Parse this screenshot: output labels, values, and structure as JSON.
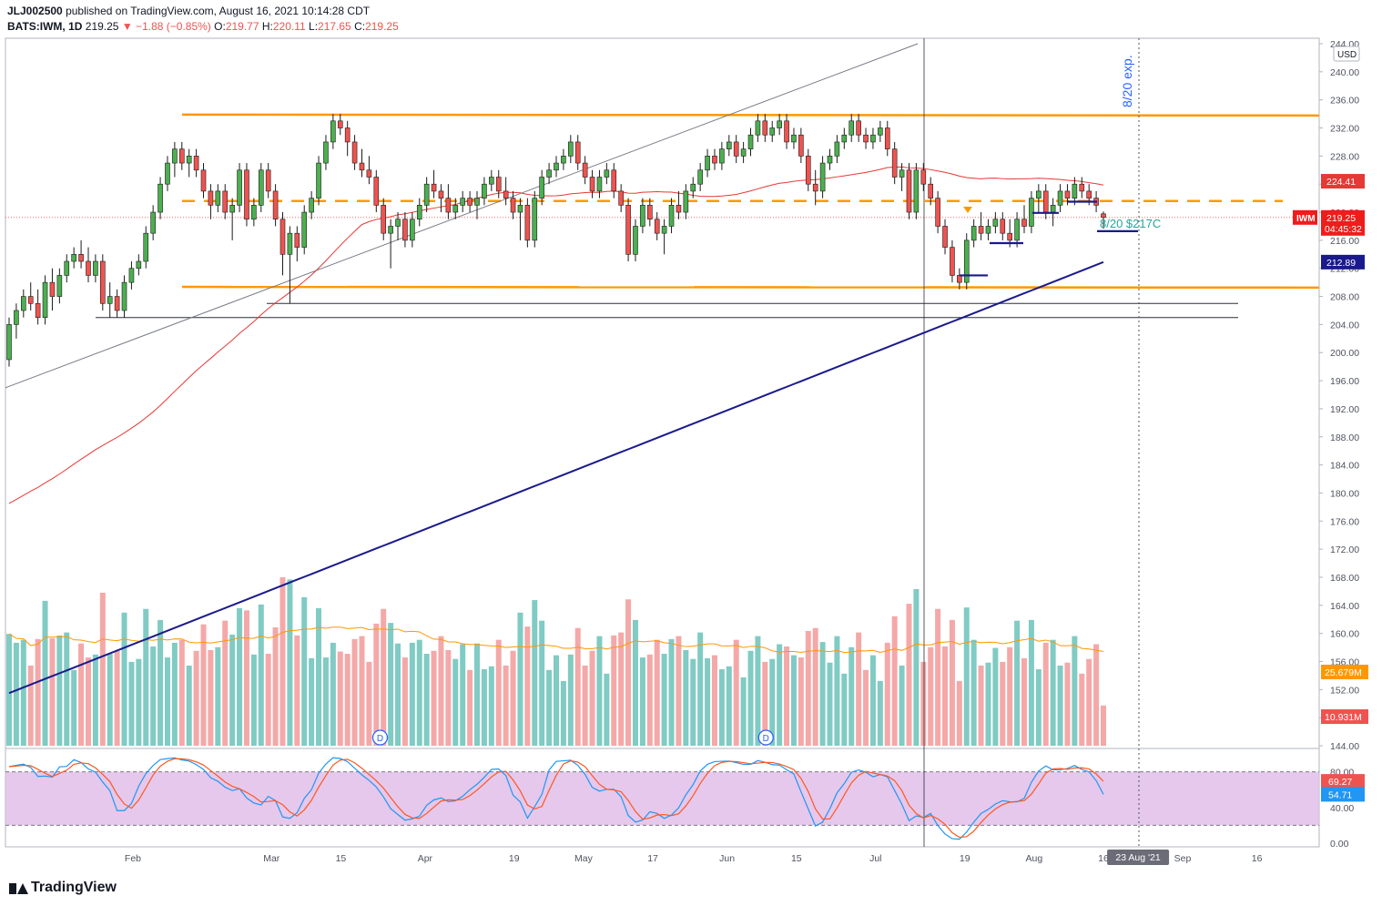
{
  "header": {
    "publisher": "JLJ002500",
    "published_text": "published on TradingView.com, August 16, 2021 10:14:28 CDT",
    "symbol": "BATS:IWM, 1D",
    "last": "219.25",
    "change": "−1.88 (−0.85%)",
    "o_label": "O:",
    "o": "219.77",
    "h_label": "H:",
    "h": "220.11",
    "l_label": "L:",
    "l": "217.65",
    "c_label": "C:",
    "c": "219.25"
  },
  "footer": {
    "brand": "TradingView"
  },
  "colors": {
    "up": "#26a69a",
    "down": "#ef5350",
    "sma_red": "#e53935",
    "sma_navy": "#1a1a8c",
    "orange": "#ff9800",
    "stoch_bg": "#e1bee7",
    "vol_up": "#80cbc4",
    "vol_down": "#f4a8a8"
  },
  "chart_data": {
    "type": "candlestick",
    "price_axis": {
      "min": 144,
      "max": 244,
      "ticks": [
        "244.00",
        "240.00",
        "236.00",
        "232.00",
        "228.00",
        "224.00",
        "220.00",
        "216.00",
        "212.00",
        "208.00",
        "204.00",
        "200.00",
        "196.00",
        "192.00",
        "188.00",
        "184.00",
        "180.00",
        "176.00",
        "172.00",
        "168.00",
        "164.00",
        "160.00",
        "156.00",
        "152.00",
        "148.00",
        "144.00"
      ],
      "currency": "USD"
    },
    "x_axis": {
      "ticks": [
        "Feb",
        "Mar",
        "15",
        "Apr",
        "19",
        "May",
        "17",
        "Jun",
        "15",
        "Jul",
        "19",
        "Aug",
        "16",
        "23 Aug '21",
        "Sep",
        "16"
      ],
      "highlight": "23 Aug '21"
    },
    "price_labels": [
      {
        "label": "",
        "value": "224.41",
        "color": "#e53935"
      },
      {
        "label": "IWM",
        "value": "219.25",
        "sub": "04:45:32",
        "color": "#ef1c1c"
      },
      {
        "label": "",
        "value": "212.89",
        "color": "#1a1a8c"
      }
    ],
    "volume_labels": [
      {
        "value": "25.679M",
        "color": "#ff9800"
      },
      {
        "value": "10.931M",
        "color": "#ef5350"
      }
    ],
    "stoch_axis": {
      "ticks": [
        "80.00",
        "40.00",
        "0.00"
      ],
      "upper": 80,
      "lower": 20
    },
    "stoch_labels": [
      {
        "value": "69.27",
        "color": "#ef5350"
      },
      {
        "value": "54.71",
        "color": "#2196f3"
      }
    ],
    "annotations": {
      "expiry_text": "8/20 exp.",
      "option_text": "8/20 $217C",
      "dividend_markers": [
        "D",
        "D"
      ]
    },
    "levels": {
      "resistance": 233.8,
      "support": 209.3,
      "mid_dashed": 221.6,
      "black_1": 207.0,
      "black_2": 205.0
    },
    "candles": [
      [
        "2021-01-07",
        199,
        205,
        198,
        204
      ],
      [
        "2021-01-08",
        204,
        207,
        202,
        206
      ],
      [
        "2021-01-11",
        206,
        209,
        205,
        208
      ],
      [
        "2021-01-12",
        208,
        210,
        206,
        207
      ],
      [
        "2021-01-13",
        207,
        209,
        204,
        205
      ],
      [
        "2021-01-14",
        205,
        211,
        204,
        210
      ],
      [
        "2021-01-15",
        210,
        212,
        206,
        208
      ],
      [
        "2021-01-19",
        208,
        212,
        207,
        211
      ],
      [
        "2021-01-20",
        211,
        214,
        210,
        213
      ],
      [
        "2021-01-21",
        213,
        215,
        212,
        214
      ],
      [
        "2021-01-22",
        214,
        216,
        212,
        213
      ],
      [
        "2021-01-25",
        213,
        215,
        210,
        211
      ],
      [
        "2021-01-26",
        211,
        214,
        210,
        213
      ],
      [
        "2021-01-27",
        213,
        214,
        206,
        207
      ],
      [
        "2021-01-28",
        207,
        210,
        205,
        208
      ],
      [
        "2021-01-29",
        208,
        209,
        205,
        206
      ],
      [
        "2021-02-01",
        206,
        211,
        205,
        210
      ],
      [
        "2021-02-02",
        210,
        213,
        209,
        212
      ],
      [
        "2021-02-03",
        212,
        214,
        211,
        213
      ],
      [
        "2021-02-04",
        213,
        218,
        212,
        217
      ],
      [
        "2021-02-05",
        217,
        221,
        216,
        220
      ],
      [
        "2021-02-08",
        220,
        225,
        219,
        224
      ],
      [
        "2021-02-09",
        224,
        228,
        223,
        227
      ],
      [
        "2021-02-10",
        227,
        230,
        225,
        229
      ],
      [
        "2021-02-11",
        229,
        230,
        226,
        227
      ],
      [
        "2021-02-12",
        227,
        229,
        225,
        228
      ],
      [
        "2021-02-16",
        228,
        229,
        225,
        226
      ],
      [
        "2021-02-17",
        226,
        227,
        222,
        223
      ],
      [
        "2021-02-18",
        223,
        224,
        219,
        221
      ],
      [
        "2021-02-19",
        221,
        224,
        220,
        223
      ],
      [
        "2021-02-22",
        223,
        224,
        219,
        220
      ],
      [
        "2021-02-23",
        220,
        222,
        216,
        221
      ],
      [
        "2021-02-24",
        221,
        227,
        220,
        226
      ],
      [
        "2021-02-25",
        226,
        227,
        218,
        219
      ],
      [
        "2021-02-26",
        219,
        222,
        218,
        221
      ],
      [
        "2021-03-01",
        221,
        227,
        220,
        226
      ],
      [
        "2021-03-02",
        226,
        227,
        222,
        223
      ],
      [
        "2021-03-03",
        223,
        224,
        218,
        219
      ],
      [
        "2021-03-04",
        219,
        220,
        211,
        214
      ],
      [
        "2021-03-05",
        214,
        218,
        207,
        217
      ],
      [
        "2021-03-08",
        217,
        218,
        213,
        215
      ],
      [
        "2021-03-09",
        215,
        221,
        214,
        220
      ],
      [
        "2021-03-10",
        220,
        223,
        219,
        222
      ],
      [
        "2021-03-11",
        222,
        228,
        221,
        227
      ],
      [
        "2021-03-12",
        227,
        231,
        226,
        230
      ],
      [
        "2021-03-15",
        230,
        234,
        229,
        233
      ],
      [
        "2021-03-16",
        233,
        234,
        231,
        232
      ],
      [
        "2021-03-17",
        232,
        233,
        228,
        230
      ],
      [
        "2021-03-18",
        230,
        231,
        226,
        227
      ],
      [
        "2021-03-19",
        227,
        229,
        225,
        226
      ],
      [
        "2021-03-22",
        226,
        228,
        224,
        225
      ],
      [
        "2021-03-23",
        225,
        226,
        220,
        221
      ],
      [
        "2021-03-24",
        221,
        222,
        216,
        217
      ],
      [
        "2021-03-25",
        217,
        219,
        212,
        218
      ],
      [
        "2021-03-26",
        218,
        220,
        216,
        219
      ],
      [
        "2021-03-29",
        219,
        220,
        215,
        216
      ],
      [
        "2021-03-30",
        216,
        220,
        215,
        219
      ],
      [
        "2021-03-31",
        219,
        222,
        218,
        221
      ],
      [
        "2021-04-01",
        221,
        225,
        220,
        224
      ],
      [
        "2021-04-05",
        224,
        226,
        222,
        223
      ],
      [
        "2021-04-06",
        223,
        224,
        220,
        222
      ],
      [
        "2021-04-07",
        222,
        224,
        219,
        220
      ],
      [
        "2021-04-08",
        220,
        222,
        219,
        221
      ],
      [
        "2021-04-09",
        221,
        223,
        220,
        222
      ],
      [
        "2021-04-12",
        222,
        223,
        220,
        221
      ],
      [
        "2021-04-13",
        221,
        223,
        219,
        222
      ],
      [
        "2021-04-14",
        222,
        225,
        221,
        224
      ],
      [
        "2021-04-15",
        224,
        226,
        223,
        225
      ],
      [
        "2021-04-16",
        225,
        226,
        222,
        223
      ],
      [
        "2021-04-19",
        223,
        225,
        221,
        222
      ],
      [
        "2021-04-20",
        222,
        223,
        219,
        220
      ],
      [
        "2021-04-21",
        220,
        222,
        216,
        221
      ],
      [
        "2021-04-22",
        221,
        222,
        215,
        216
      ],
      [
        "2021-04-23",
        216,
        223,
        215,
        222
      ],
      [
        "2021-04-26",
        222,
        226,
        221,
        225
      ],
      [
        "2021-04-27",
        225,
        227,
        224,
        226
      ],
      [
        "2021-04-28",
        226,
        228,
        225,
        227
      ],
      [
        "2021-04-29",
        227,
        229,
        226,
        228
      ],
      [
        "2021-04-30",
        228,
        231,
        227,
        230
      ],
      [
        "2021-05-03",
        230,
        231,
        226,
        227
      ],
      [
        "2021-05-04",
        227,
        228,
        224,
        225
      ],
      [
        "2021-05-05",
        225,
        226,
        222,
        223
      ],
      [
        "2021-05-06",
        223,
        226,
        222,
        225
      ],
      [
        "2021-05-07",
        225,
        227,
        224,
        226
      ],
      [
        "2021-05-10",
        226,
        227,
        222,
        223
      ],
      [
        "2021-05-11",
        223,
        224,
        220,
        221
      ],
      [
        "2021-05-12",
        221,
        222,
        213,
        214
      ],
      [
        "2021-05-13",
        214,
        219,
        213,
        218
      ],
      [
        "2021-05-14",
        218,
        222,
        217,
        221
      ],
      [
        "2021-05-17",
        221,
        222,
        218,
        219
      ],
      [
        "2021-05-18",
        219,
        220,
        216,
        217
      ],
      [
        "2021-05-19",
        217,
        219,
        214,
        218
      ],
      [
        "2021-05-20",
        218,
        222,
        217,
        221
      ],
      [
        "2021-05-21",
        221,
        223,
        219,
        220
      ],
      [
        "2021-05-24",
        220,
        224,
        219,
        223
      ],
      [
        "2021-05-25",
        223,
        225,
        222,
        224
      ],
      [
        "2021-05-26",
        224,
        227,
        223,
        226
      ],
      [
        "2021-05-27",
        226,
        229,
        225,
        228
      ],
      [
        "2021-05-28",
        228,
        229,
        226,
        227
      ],
      [
        "2021-06-01",
        227,
        230,
        226,
        229
      ],
      [
        "2021-06-02",
        229,
        231,
        228,
        230
      ],
      [
        "2021-06-03",
        230,
        231,
        227,
        228
      ],
      [
        "2021-06-04",
        228,
        230,
        227,
        229
      ],
      [
        "2021-06-07",
        229,
        232,
        228,
        231
      ],
      [
        "2021-06-08",
        231,
        234,
        230,
        233
      ],
      [
        "2021-06-09",
        233,
        234,
        230,
        231
      ],
      [
        "2021-06-10",
        231,
        233,
        230,
        232
      ],
      [
        "2021-06-11",
        232,
        234,
        231,
        233
      ],
      [
        "2021-06-14",
        233,
        234,
        229,
        230
      ],
      [
        "2021-06-15",
        230,
        232,
        229,
        231
      ],
      [
        "2021-06-16",
        231,
        232,
        227,
        228
      ],
      [
        "2021-06-17",
        228,
        229,
        223,
        224
      ],
      [
        "2021-06-18",
        224,
        226,
        221,
        223
      ],
      [
        "2021-06-21",
        223,
        228,
        222,
        227
      ],
      [
        "2021-06-22",
        227,
        229,
        226,
        228
      ],
      [
        "2021-06-23",
        228,
        231,
        227,
        230
      ],
      [
        "2021-06-24",
        230,
        232,
        229,
        231
      ],
      [
        "2021-06-25",
        231,
        234,
        230,
        233
      ],
      [
        "2021-06-28",
        233,
        234,
        230,
        231
      ],
      [
        "2021-06-29",
        231,
        232,
        229,
        230
      ],
      [
        "2021-06-30",
        230,
        232,
        229,
        231
      ],
      [
        "2021-07-01",
        231,
        233,
        230,
        232
      ],
      [
        "2021-07-02",
        232,
        233,
        228,
        229
      ],
      [
        "2021-07-06",
        229,
        230,
        224,
        225
      ],
      [
        "2021-07-07",
        225,
        227,
        223,
        226
      ],
      [
        "2021-07-08",
        226,
        227,
        219,
        220
      ],
      [
        "2021-07-09",
        220,
        227,
        219,
        226
      ],
      [
        "2021-07-12",
        226,
        227,
        223,
        224
      ],
      [
        "2021-07-13",
        224,
        225,
        221,
        222
      ],
      [
        "2021-07-14",
        222,
        223,
        217,
        218
      ],
      [
        "2021-07-15",
        218,
        219,
        214,
        215
      ],
      [
        "2021-07-16",
        215,
        216,
        210,
        211
      ],
      [
        "2021-07-19",
        211,
        212,
        209,
        210
      ],
      [
        "2021-07-20",
        210,
        217,
        209,
        216
      ],
      [
        "2021-07-21",
        216,
        219,
        215,
        218
      ],
      [
        "2021-07-22",
        218,
        220,
        216,
        217
      ],
      [
        "2021-07-23",
        217,
        219,
        216,
        218
      ],
      [
        "2021-07-26",
        218,
        220,
        217,
        219
      ],
      [
        "2021-07-27",
        219,
        220,
        216,
        217
      ],
      [
        "2021-07-28",
        217,
        219,
        215,
        216
      ],
      [
        "2021-07-29",
        216,
        220,
        215,
        219
      ],
      [
        "2021-07-30",
        219,
        221,
        217,
        218
      ],
      [
        "2021-08-02",
        218,
        223,
        217,
        222
      ],
      [
        "2021-08-03",
        222,
        224,
        220,
        223
      ],
      [
        "2021-08-04",
        223,
        224,
        219,
        220
      ],
      [
        "2021-08-05",
        220,
        222,
        218,
        221
      ],
      [
        "2021-08-06",
        221,
        224,
        220,
        223
      ],
      [
        "2021-08-09",
        223,
        224,
        221,
        222
      ],
      [
        "2021-08-10",
        222,
        225,
        221,
        224
      ],
      [
        "2021-08-11",
        224,
        225,
        222,
        223
      ],
      [
        "2021-08-12",
        223,
        224,
        221,
        222
      ],
      [
        "2021-08-13",
        222,
        223,
        220,
        221
      ],
      [
        "2021-08-16",
        219.77,
        220.11,
        217.65,
        219.25
      ]
    ]
  }
}
